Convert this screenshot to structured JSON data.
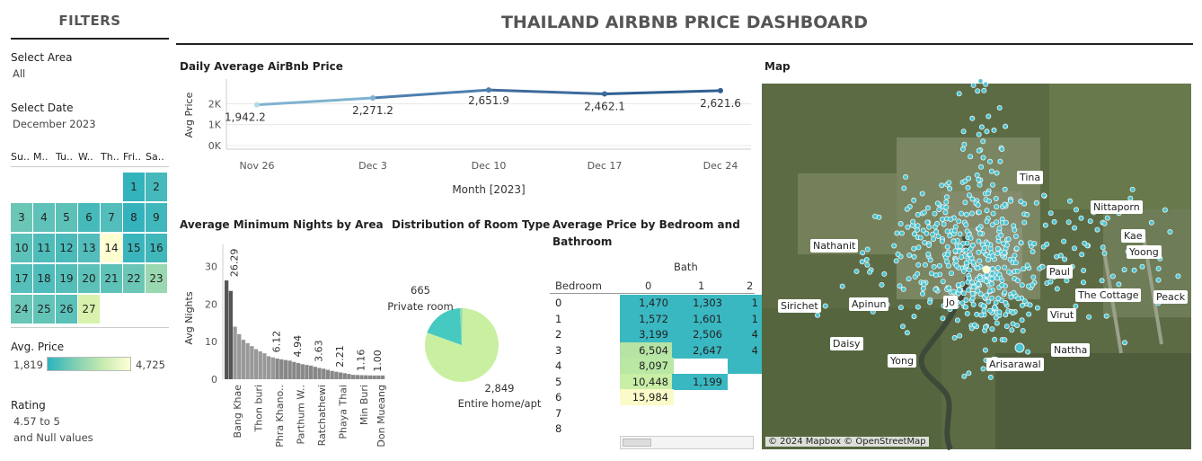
{
  "dashboard": {
    "title": "THAILAND AIRBNB PRICE DASHBOARD"
  },
  "filters": {
    "title": "FILTERS",
    "area": {
      "label": "Select Area",
      "value": "All"
    },
    "date": {
      "label": "Select Date",
      "value": "December 2023"
    },
    "calendar": {
      "weekdays": [
        "Su..",
        "M..",
        "Tu..",
        "W..",
        "Th..",
        "Fri..",
        "Sa.."
      ],
      "days": [
        {
          "day": "1",
          "col": 5,
          "row": 0,
          "color": "#33b3bc"
        },
        {
          "day": "2",
          "col": 6,
          "row": 0,
          "color": "#45b9bb"
        },
        {
          "day": "3",
          "col": 0,
          "row": 1,
          "color": "#6cc6b6"
        },
        {
          "day": "4",
          "col": 1,
          "row": 1,
          "color": "#5fc2b8"
        },
        {
          "day": "5",
          "col": 2,
          "row": 1,
          "color": "#5dc1b8"
        },
        {
          "day": "6",
          "col": 3,
          "row": 1,
          "color": "#46b9bb"
        },
        {
          "day": "7",
          "col": 4,
          "row": 1,
          "color": "#52bdba"
        },
        {
          "day": "8",
          "col": 5,
          "row": 1,
          "color": "#34b3bc"
        },
        {
          "day": "9",
          "col": 6,
          "row": 1,
          "color": "#40b7bb"
        },
        {
          "day": "10",
          "col": 0,
          "row": 2,
          "color": "#5cc1b8"
        },
        {
          "day": "11",
          "col": 1,
          "row": 2,
          "color": "#4fbcb9"
        },
        {
          "day": "12",
          "col": 2,
          "row": 2,
          "color": "#4bbbba"
        },
        {
          "day": "13",
          "col": 3,
          "row": 2,
          "color": "#52bdba"
        },
        {
          "day": "14",
          "col": 4,
          "row": 2,
          "color": "#ffffd2"
        },
        {
          "day": "15",
          "col": 5,
          "row": 2,
          "color": "#3ab5bc"
        },
        {
          "day": "16",
          "col": 6,
          "row": 2,
          "color": "#3fb7bb"
        },
        {
          "day": "17",
          "col": 0,
          "row": 3,
          "color": "#56bfb9"
        },
        {
          "day": "18",
          "col": 1,
          "row": 3,
          "color": "#4ebcba"
        },
        {
          "day": "19",
          "col": 2,
          "row": 3,
          "color": "#54beb9"
        },
        {
          "day": "20",
          "col": 3,
          "row": 3,
          "color": "#5cc1b8"
        },
        {
          "day": "21",
          "col": 4,
          "row": 3,
          "color": "#5ec2b8"
        },
        {
          "day": "22",
          "col": 5,
          "row": 3,
          "color": "#6cc6b6"
        },
        {
          "day": "23",
          "col": 6,
          "row": 3,
          "color": "#9ad8b0"
        },
        {
          "day": "24",
          "col": 0,
          "row": 4,
          "color": "#6ac6b6"
        },
        {
          "day": "25",
          "col": 1,
          "row": 4,
          "color": "#62c3b7"
        },
        {
          "day": "26",
          "col": 2,
          "row": 4,
          "color": "#5ac1b8"
        },
        {
          "day": "27",
          "col": 3,
          "row": 4,
          "color": "#d8f2ad"
        }
      ]
    },
    "avg_price": {
      "label": "Avg. Price",
      "min": "1,819",
      "max": "4,725"
    },
    "rating": {
      "label": "Rating",
      "value_line1": "4.57 to 5",
      "value_line2": "and Null values"
    }
  },
  "daily_chart": {
    "title": "Daily Average AirBnb Price",
    "chart_data": {
      "type": "line",
      "title": "Daily Average AirBnb Price",
      "xlabel": "Month [2023]",
      "ylabel": "Avg Price",
      "categories": [
        "Nov 26",
        "Dec 3",
        "Dec 10",
        "Dec 17",
        "Dec 24"
      ],
      "values": [
        1942.2,
        2271.2,
        2651.9,
        2462.1,
        2621.6
      ],
      "value_labels": [
        "1,942.2",
        "2,271.2",
        "2,651.9",
        "2,462.1",
        "2,621.6"
      ],
      "y_ticks": [
        "2K",
        "1K",
        "0K"
      ],
      "ylim": [
        0,
        3000
      ]
    }
  },
  "min_nights_chart": {
    "title": "Average Minimum Nights by Area",
    "chart_data": {
      "type": "bar",
      "title": "Average Minimum Nights by Area",
      "ylabel": "Avg Nights",
      "y_ticks": [
        "30",
        "20",
        "10",
        "0"
      ],
      "ylim": [
        0,
        33
      ],
      "values": [
        26.29,
        23.5,
        14.0,
        12.0,
        10.5,
        9.6,
        8.8,
        8.0,
        7.4,
        6.9,
        6.12,
        5.8,
        5.5,
        5.3,
        5.1,
        4.94,
        4.6,
        4.3,
        4.0,
        3.8,
        3.63,
        3.3,
        3.0,
        2.8,
        2.5,
        2.21,
        2.0,
        1.8,
        1.6,
        1.4,
        1.16,
        1.12,
        1.08,
        1.05,
        1.02,
        1.0,
        1.0,
        1.0
      ],
      "value_labels": [
        {
          "index": 2,
          "text": "26.29"
        },
        {
          "index": 12,
          "text": "6.12"
        },
        {
          "index": 17,
          "text": "4.94"
        },
        {
          "index": 22,
          "text": "3.63"
        },
        {
          "index": 27,
          "text": "2.21"
        },
        {
          "index": 32,
          "text": "1.16"
        },
        {
          "index": 36,
          "text": "1.00"
        }
      ],
      "category_labels": [
        {
          "index": 3,
          "text": "Bang Khae"
        },
        {
          "index": 8,
          "text": "Thon buri"
        },
        {
          "index": 13,
          "text": "Phra Khano.."
        },
        {
          "index": 18,
          "text": "Parthum W.."
        },
        {
          "index": 23,
          "text": "Ratchathewi"
        },
        {
          "index": 28,
          "text": "Phaya Thai"
        },
        {
          "index": 33,
          "text": "Min Buri"
        },
        {
          "index": 37,
          "text": "Don Mueang"
        }
      ]
    }
  },
  "room_type_chart": {
    "title": "Distribution of Room Type",
    "chart_data": {
      "type": "pie",
      "title": "Distribution of Room Type",
      "slices": [
        {
          "label": "Entire home/apt",
          "value": 2849,
          "value_label": "2,849",
          "color": "#c8f0a0"
        },
        {
          "label": "Private room",
          "value": 665,
          "value_label": "665",
          "color": "#46c9c0"
        },
        {
          "label": "",
          "value": 40,
          "value_label": "",
          "color": "#8fdcae"
        }
      ]
    }
  },
  "bed_bath_table": {
    "title_line1": "Average Price by Bedroom and",
    "title_line2": "Bathroom",
    "col_header": "Bath",
    "row_header": "Bedroom",
    "columns": [
      "0",
      "1",
      "2"
    ],
    "rows": [
      {
        "label": "0",
        "cells": [
          {
            "text": "1,470",
            "color": "#3ab8c2"
          },
          {
            "text": "1,303",
            "color": "#3ab8c2"
          },
          {
            "text": "1",
            "color": "#3ab8c2"
          }
        ]
      },
      {
        "label": "1",
        "cells": [
          {
            "text": "1,572",
            "color": "#3ab8c2"
          },
          {
            "text": "1,601",
            "color": "#3ab8c2"
          },
          {
            "text": "1",
            "color": "#3ab8c2"
          }
        ]
      },
      {
        "label": "2",
        "cells": [
          {
            "text": "3,199",
            "color": "#3ab8c2"
          },
          {
            "text": "2,506",
            "color": "#3ab8c2"
          },
          {
            "text": "4",
            "color": "#3ab8c2"
          }
        ]
      },
      {
        "label": "3",
        "cells": [
          {
            "text": "6,504",
            "color": "#b5e4a5"
          },
          {
            "text": "2,647",
            "color": "#3ab8c2"
          },
          {
            "text": "4",
            "color": "#3ab8c2"
          }
        ]
      },
      {
        "label": "4",
        "cells": [
          {
            "text": "8,097",
            "color": "#b9e7a4"
          },
          {
            "text": "",
            "color": ""
          },
          {
            "text": "",
            "color": "#3ab8c2"
          }
        ]
      },
      {
        "label": "5",
        "cells": [
          {
            "text": "10,448",
            "color": "#c9eea6"
          },
          {
            "text": "1,199",
            "color": "#3ab8c2"
          },
          {
            "text": "",
            "color": ""
          }
        ]
      },
      {
        "label": "6",
        "cells": [
          {
            "text": "15,984",
            "color": "#fafbc8"
          },
          {
            "text": "",
            "color": ""
          },
          {
            "text": "",
            "color": ""
          }
        ]
      },
      {
        "label": "7",
        "cells": [
          {
            "text": "",
            "color": ""
          },
          {
            "text": "",
            "color": ""
          },
          {
            "text": "",
            "color": ""
          }
        ]
      },
      {
        "label": "8",
        "cells": [
          {
            "text": "",
            "color": ""
          },
          {
            "text": "",
            "color": ""
          },
          {
            "text": "",
            "color": ""
          }
        ]
      }
    ]
  },
  "map": {
    "title": "Map",
    "credit": "© 2024 Mapbox © OpenStreetMap",
    "labels": [
      "Tina",
      "Nittaporn",
      "Nathanit",
      "Kae",
      "Yoong",
      "Paul",
      "The Cottage",
      "Peack",
      "Sirichet",
      "Apinun",
      "Jo",
      "Virut",
      "Daisy",
      "Nattha",
      "Yong",
      "Arisarawal"
    ]
  }
}
